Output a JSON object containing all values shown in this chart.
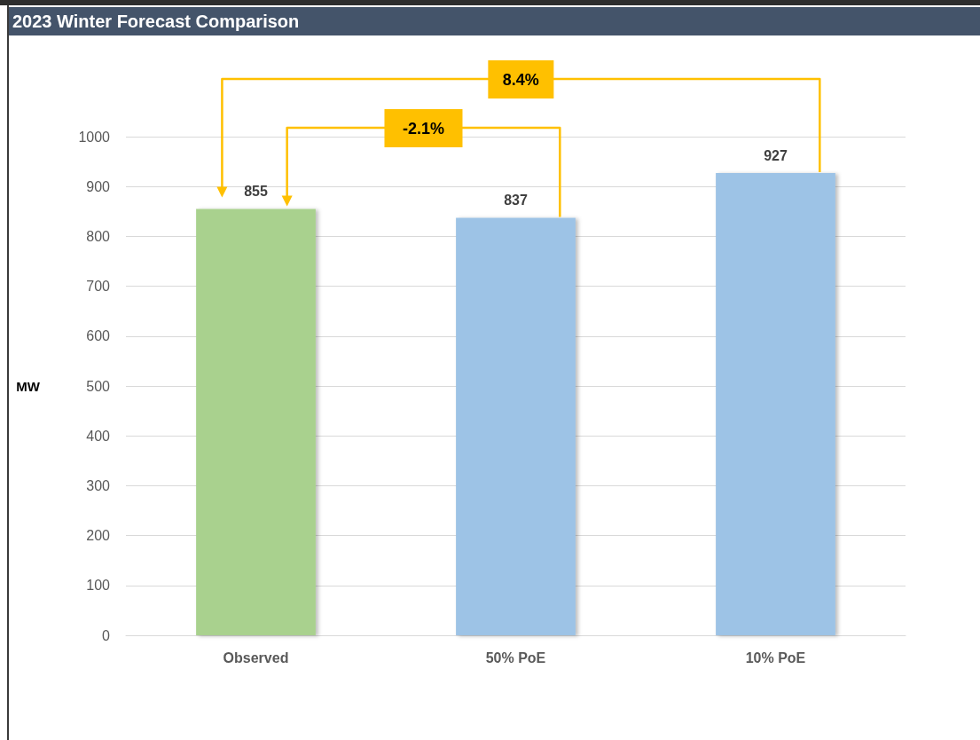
{
  "chart_data": {
    "type": "bar",
    "title": "2023 Winter Forecast Comparison",
    "ylabel": "MW",
    "categories": [
      "Observed",
      "50% PoE",
      "10% PoE"
    ],
    "values": [
      855,
      837,
      927
    ],
    "colors": [
      "#a9d18e",
      "#9dc3e6",
      "#9dc3e6"
    ],
    "ylim": [
      0,
      1000
    ],
    "yticks": [
      0,
      100,
      200,
      300,
      400,
      500,
      600,
      700,
      800,
      900,
      1000
    ],
    "grid": "y",
    "data_labels": true,
    "annotations": [
      "-2.1%",
      "8.4%"
    ]
  }
}
